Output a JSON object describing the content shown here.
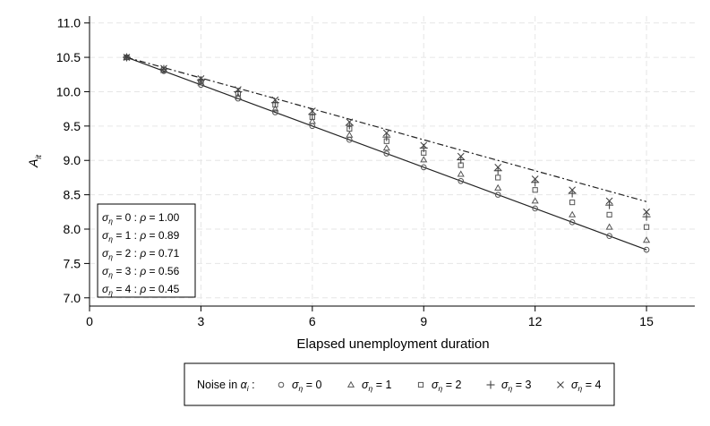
{
  "chart_data": {
    "type": "scatter",
    "title": "",
    "xlabel": "Elapsed unemployment duration",
    "ylabel_main": "A",
    "ylabel_sub": "it",
    "xlim": [
      0,
      16.3
    ],
    "ylim": [
      6.88,
      11.1
    ],
    "x_ticks": [
      0,
      3,
      6,
      9,
      12,
      15
    ],
    "y_ticks": [
      7.0,
      7.5,
      8.0,
      8.5,
      9.0,
      9.5,
      10.0,
      10.5,
      11.0
    ],
    "grid": true,
    "x": [
      1,
      2,
      3,
      4,
      5,
      6,
      7,
      8,
      9,
      10,
      11,
      12,
      13,
      14,
      15
    ],
    "series": [
      {
        "name": "σ_η = 0",
        "marker": "circle",
        "values": [
          10.5,
          10.3,
          10.1,
          9.9,
          9.7,
          9.5,
          9.3,
          9.1,
          8.9,
          8.7,
          8.5,
          8.3,
          8.1,
          7.9,
          7.7
        ]
      },
      {
        "name": "σ_η = 1",
        "marker": "triangle",
        "values": [
          10.5,
          10.31,
          10.13,
          9.93,
          9.75,
          9.57,
          9.37,
          9.18,
          9.01,
          8.8,
          8.6,
          8.41,
          8.21,
          8.03,
          7.84
        ]
      },
      {
        "name": "σ_η = 2",
        "marker": "square",
        "values": [
          10.5,
          10.32,
          10.15,
          9.97,
          9.81,
          9.63,
          9.46,
          9.28,
          9.11,
          8.93,
          8.75,
          8.57,
          8.39,
          8.21,
          8.03
        ]
      },
      {
        "name": "σ_η = 3",
        "marker": "plus",
        "values": [
          10.5,
          10.33,
          10.17,
          10.0,
          9.84,
          9.67,
          9.51,
          9.34,
          9.18,
          9.01,
          8.85,
          8.68,
          8.52,
          8.35,
          8.18
        ]
      },
      {
        "name": "σ_η = 4",
        "marker": "cross",
        "values": [
          10.5,
          10.34,
          10.19,
          10.03,
          9.88,
          9.72,
          9.56,
          9.4,
          9.22,
          9.06,
          8.9,
          8.73,
          8.57,
          8.41,
          8.25
        ]
      }
    ],
    "lines": [
      {
        "style": "solid",
        "x": [
          1,
          15
        ],
        "y": [
          10.5,
          7.7
        ]
      },
      {
        "style": "dash-dot",
        "x": [
          1,
          15
        ],
        "y": [
          10.5,
          8.4
        ]
      }
    ],
    "info_box": {
      "lines": [
        {
          "sigma": "0",
          "rho": "1.00"
        },
        {
          "sigma": "1",
          "rho": "0.89"
        },
        {
          "sigma": "2",
          "rho": "0.71"
        },
        {
          "sigma": "3",
          "rho": "0.56"
        },
        {
          "sigma": "4",
          "rho": "0.45"
        }
      ]
    },
    "legend": {
      "title_prefix": "Noise in ",
      "title_symbol": "α",
      "title_sub": "i",
      "title_suffix": " :",
      "entries": [
        {
          "value": "0",
          "marker": "circle"
        },
        {
          "value": "1",
          "marker": "triangle"
        },
        {
          "value": "2",
          "marker": "square"
        },
        {
          "value": "3",
          "marker": "plus"
        },
        {
          "value": "4",
          "marker": "cross"
        }
      ]
    }
  }
}
